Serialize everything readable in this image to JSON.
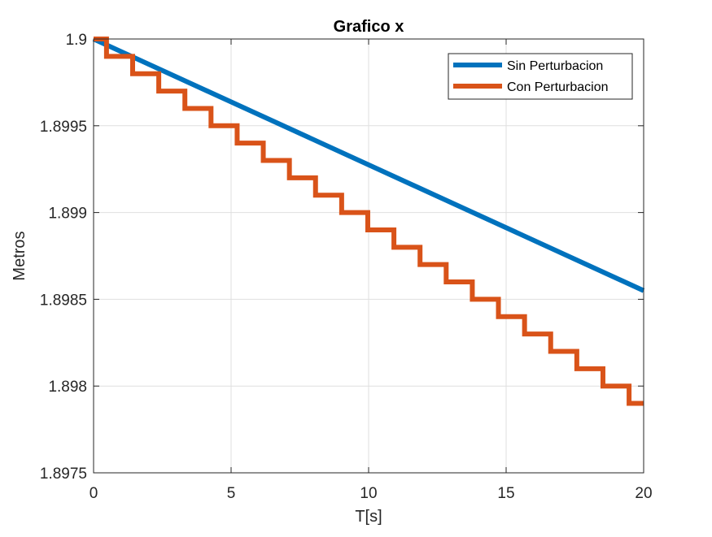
{
  "chart_data": {
    "type": "line",
    "title": "Grafico x",
    "xlabel": "T[s]",
    "ylabel": "Metros",
    "xlim": [
      0,
      20
    ],
    "ylim": [
      1.8975,
      1.9
    ],
    "xticks": [
      0,
      5,
      10,
      15,
      20
    ],
    "xtick_labels": [
      "0",
      "5",
      "10",
      "15",
      "20"
    ],
    "yticks": [
      1.8975,
      1.898,
      1.8985,
      1.899,
      1.8995,
      1.9
    ],
    "ytick_labels": [
      "1.8975",
      "1.898",
      "1.8985",
      "1.899",
      "1.8995",
      "1.9"
    ],
    "grid": true,
    "legend_position": "top-right",
    "series": [
      {
        "name": "Sin Perturbacion",
        "style": "line",
        "color": "#0072BD",
        "x": [
          0,
          20
        ],
        "y": [
          1.9,
          1.89855
        ]
      },
      {
        "name": "Con Perturbacion",
        "style": "step",
        "color": "#D95319",
        "x": [
          0,
          0.47,
          1.42,
          2.37,
          3.32,
          4.27,
          5.22,
          6.17,
          7.12,
          8.07,
          9.02,
          9.97,
          10.92,
          11.87,
          12.82,
          13.77,
          14.72,
          15.67,
          16.62,
          17.57,
          18.52,
          19.47,
          20
        ],
        "y": [
          1.9,
          1.8999,
          1.8998,
          1.8997,
          1.8996,
          1.8995,
          1.8994,
          1.8993,
          1.8992,
          1.8991,
          1.899,
          1.8989,
          1.8988,
          1.8987,
          1.8986,
          1.8985,
          1.8984,
          1.8983,
          1.8982,
          1.8981,
          1.898,
          1.8979,
          1.8979
        ]
      }
    ]
  }
}
